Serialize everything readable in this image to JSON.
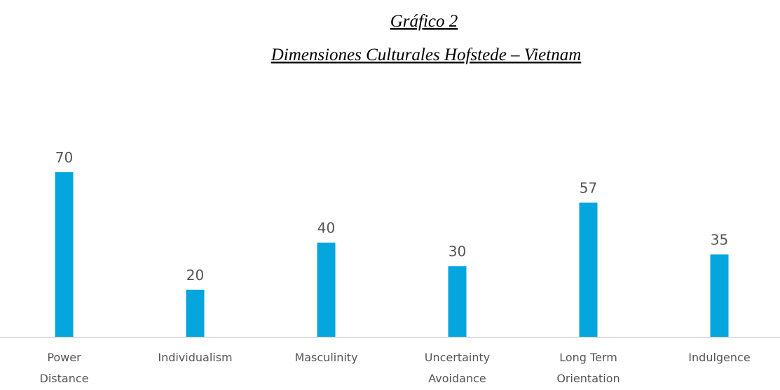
{
  "chart_data": {
    "type": "bar",
    "title": "Gráfico 2",
    "subtitle": "Dimensiones Culturales Hofstede – Vietnam",
    "categories": [
      "Power Distance",
      "Individualism",
      "Masculinity",
      "Uncertainty Avoidance",
      "Long Term Orientation",
      "Indulgence"
    ],
    "values": [
      70,
      20,
      40,
      30,
      57,
      35
    ],
    "color": "#05a6de",
    "ylim": [
      0,
      100
    ]
  }
}
